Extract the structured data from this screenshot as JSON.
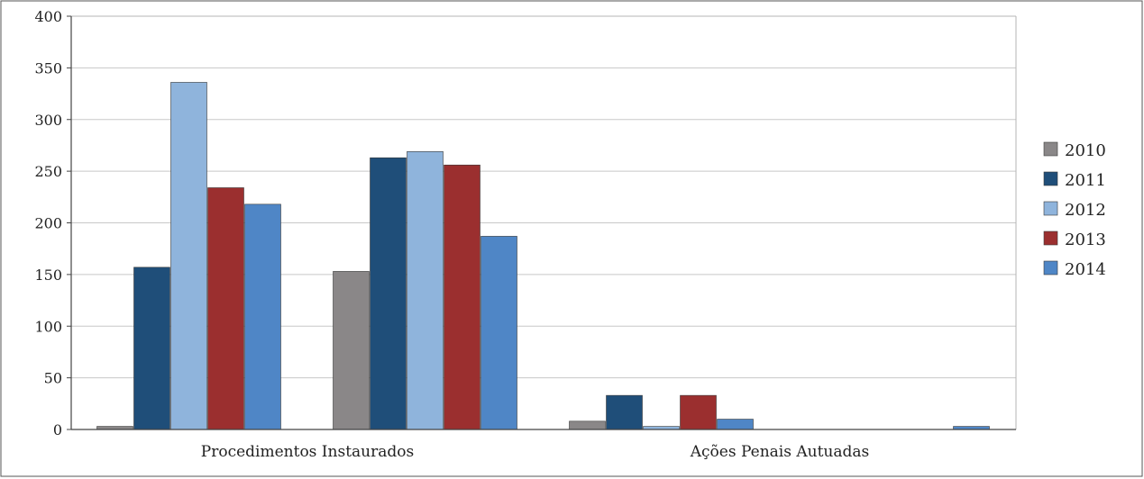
{
  "chart_data": {
    "type": "bar",
    "categories": [
      "Procedimentos Instaurados",
      "",
      "Ações Penais Autuadas",
      ""
    ],
    "series": [
      {
        "name": "2010",
        "color": "#8a8788",
        "values": [
          3,
          153,
          8,
          0
        ]
      },
      {
        "name": "2011",
        "color": "#1f4e79",
        "values": [
          157,
          263,
          33,
          0
        ]
      },
      {
        "name": "2012",
        "color": "#8fb4dc",
        "values": [
          336,
          269,
          3,
          0
        ]
      },
      {
        "name": "2013",
        "color": "#9b2f2f",
        "values": [
          234,
          256,
          33,
          0
        ]
      },
      {
        "name": "2014",
        "color": "#4f86c6",
        "values": [
          218,
          187,
          10,
          3
        ]
      }
    ],
    "y_ticks": [
      "0",
      "50",
      "100",
      "150",
      "200",
      "250",
      "300",
      "350",
      "400"
    ],
    "ylim": [
      0,
      400
    ],
    "grid": true,
    "legend_position": "right"
  }
}
